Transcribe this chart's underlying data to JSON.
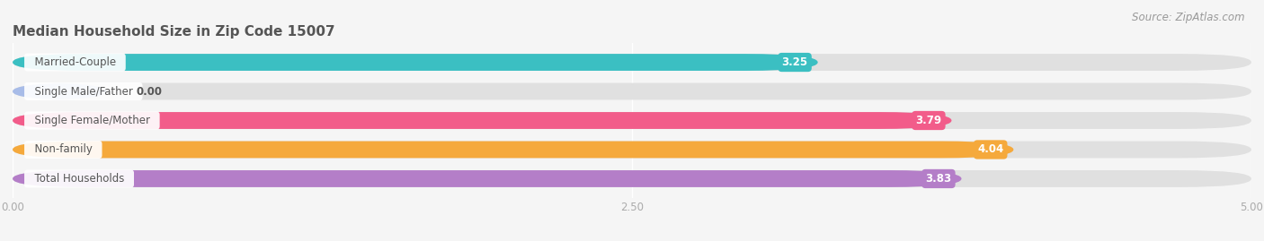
{
  "title": "Median Household Size in Zip Code 15007",
  "source": "Source: ZipAtlas.com",
  "categories": [
    "Married-Couple",
    "Single Male/Father",
    "Single Female/Mother",
    "Non-family",
    "Total Households"
  ],
  "values": [
    3.25,
    0.0,
    3.79,
    4.04,
    3.83
  ],
  "bar_colors": [
    "#3bbfc2",
    "#a8bce8",
    "#f25c8a",
    "#f5a93c",
    "#b47ec8"
  ],
  "bar_height": 0.58,
  "xlim": [
    0,
    5.0
  ],
  "xticks": [
    0.0,
    2.5,
    5.0
  ],
  "xtick_labels": [
    "0.00",
    "2.50",
    "5.00"
  ],
  "title_fontsize": 11,
  "label_fontsize": 8.5,
  "value_fontsize": 8.5,
  "source_fontsize": 8.5,
  "background_color": "#f5f5f5",
  "bar_background": "#e0e0e0",
  "title_color": "#555555",
  "label_color": "#555555",
  "value_color": "#ffffff",
  "source_color": "#999999",
  "tick_color": "#aaaaaa",
  "single_male_bar_width": 0.38
}
